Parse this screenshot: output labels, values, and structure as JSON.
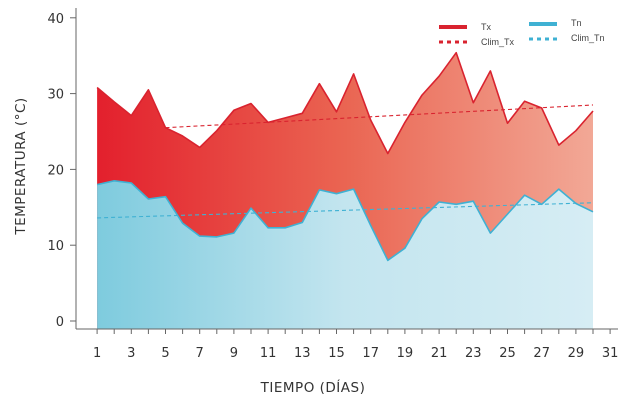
{
  "chart_data": {
    "type": "area",
    "xlabel": "TIEMPO (DÍAS)",
    "ylabel": "TEMPERATURA (°C)",
    "xlim": [
      0,
      31
    ],
    "ylim": [
      0,
      40
    ],
    "x_ticks": [
      1,
      3,
      5,
      7,
      9,
      11,
      13,
      15,
      17,
      19,
      21,
      23,
      25,
      27,
      29,
      31
    ],
    "y_ticks": [
      0,
      10,
      20,
      30,
      40
    ],
    "legend_position": "top-right",
    "grid": false,
    "series": [
      {
        "name": "Tx",
        "style": "solid",
        "color": "#d9232f",
        "x": [
          1,
          2,
          3,
          4,
          5,
          6,
          7,
          8,
          9,
          10,
          11,
          12,
          13,
          14,
          15,
          16,
          17,
          18,
          19,
          20,
          21,
          22,
          23,
          24,
          25,
          26,
          27,
          28,
          29,
          30
        ],
        "values": [
          30.8,
          28.9,
          27.1,
          30.5,
          25.5,
          24.4,
          22.9,
          25.1,
          27.8,
          28.7,
          26.2,
          26.8,
          27.4,
          31.3,
          27.6,
          32.6,
          26.5,
          22.1,
          26.2,
          29.8,
          32.3,
          35.4,
          28.8,
          33.0,
          26.1,
          29.0,
          28.1,
          23.2,
          25.1,
          27.7
        ]
      },
      {
        "name": "Tn",
        "style": "solid",
        "color": "#3fb1d3",
        "x": [
          1,
          2,
          3,
          4,
          5,
          6,
          7,
          8,
          9,
          10,
          11,
          12,
          13,
          14,
          15,
          16,
          17,
          18,
          19,
          20,
          21,
          22,
          23,
          24,
          25,
          26,
          27,
          28,
          29,
          30
        ],
        "values": [
          18.0,
          18.5,
          18.2,
          16.1,
          16.4,
          12.9,
          11.2,
          11.1,
          11.6,
          14.9,
          12.3,
          12.3,
          13.0,
          17.3,
          16.8,
          17.4,
          12.6,
          8.0,
          9.6,
          13.5,
          15.7,
          15.4,
          15.8,
          11.6,
          14.1,
          16.6,
          15.4,
          17.4,
          15.5,
          14.4
        ]
      },
      {
        "name": "Clim_Tx",
        "style": "dashed",
        "color": "#d9232f",
        "x": [
          5,
          30
        ],
        "values": [
          25.5,
          28.5
        ]
      },
      {
        "name": "Clim_Tn",
        "style": "dashed",
        "color": "#3fb1d3",
        "x": [
          1,
          30
        ],
        "values": [
          13.6,
          15.6
        ]
      }
    ]
  }
}
